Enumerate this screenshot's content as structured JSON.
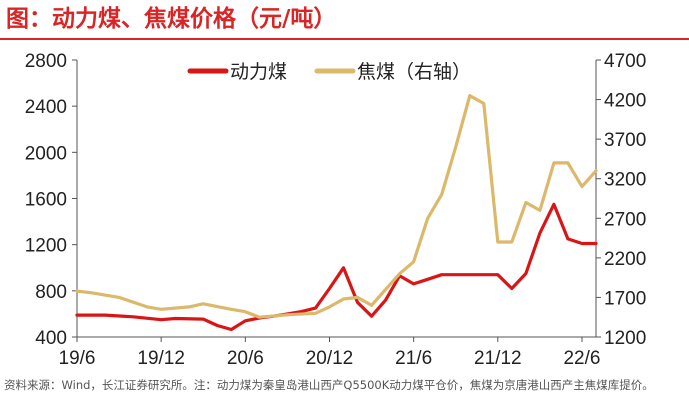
{
  "header": {
    "title": "图：动力煤、焦煤价格（元/吨）"
  },
  "footnote": "资料来源：Wind，长江证券研究所。注：动力煤为秦皇岛港山西产Q5500K动力煤平仓价，焦煤为京唐港山西产主焦煤库提价。",
  "chart_data": {
    "type": "line",
    "x_start": "2019-06",
    "x_end": "2022-07",
    "x_ticks": [
      "19/6",
      "19/12",
      "20/6",
      "20/12",
      "21/6",
      "21/12",
      "22/6"
    ],
    "y_left": {
      "ticks": [
        "2800",
        "2400",
        "2000",
        "1600",
        "1200",
        "800",
        "400"
      ],
      "ylim": [
        400,
        2800
      ]
    },
    "y_right": {
      "ticks": [
        "4700",
        "4200",
        "3700",
        "3200",
        "2700",
        "2200",
        "1700",
        "1200"
      ],
      "ylim": [
        1200,
        4700
      ]
    },
    "legend": [
      "动力煤",
      "焦煤（右轴）"
    ],
    "colors": {
      "thermal": "#d91515",
      "coking": "#dbb86a"
    },
    "series": [
      {
        "name": "动力煤",
        "axis": "left",
        "points": [
          [
            "2019-06",
            590
          ],
          [
            "2019-08",
            590
          ],
          [
            "2019-10",
            575
          ],
          [
            "2019-12",
            550
          ],
          [
            "2020-01",
            560
          ],
          [
            "2020-03",
            555
          ],
          [
            "2020-04",
            500
          ],
          [
            "2020-05",
            465
          ],
          [
            "2020-06",
            540
          ],
          [
            "2020-07",
            565
          ],
          [
            "2020-08",
            580
          ],
          [
            "2020-09",
            600
          ],
          [
            "2020-10",
            620
          ],
          [
            "2020-11",
            650
          ],
          [
            "2020-12",
            820
          ],
          [
            "2021-01",
            1000
          ],
          [
            "2021-02",
            700
          ],
          [
            "2021-03",
            580
          ],
          [
            "2021-04",
            720
          ],
          [
            "2021-05",
            930
          ],
          [
            "2021-06",
            860
          ],
          [
            "2021-07",
            900
          ],
          [
            "2021-08",
            940
          ],
          [
            "2021-11",
            940
          ],
          [
            "2021-12",
            940
          ],
          [
            "2022-01",
            820
          ],
          [
            "2022-02",
            950
          ],
          [
            "2022-03",
            1300
          ],
          [
            "2022-04",
            1550
          ],
          [
            "2022-05",
            1250
          ],
          [
            "2022-06",
            1210
          ],
          [
            "2022-07",
            1210
          ]
        ]
      },
      {
        "name": "焦煤（右轴）",
        "axis": "right",
        "points": [
          [
            "2019-06",
            1780
          ],
          [
            "2019-07",
            1760
          ],
          [
            "2019-09",
            1700
          ],
          [
            "2019-11",
            1580
          ],
          [
            "2019-12",
            1550
          ],
          [
            "2020-02",
            1580
          ],
          [
            "2020-03",
            1620
          ],
          [
            "2020-05",
            1550
          ],
          [
            "2020-06",
            1520
          ],
          [
            "2020-07",
            1450
          ],
          [
            "2020-09",
            1480
          ],
          [
            "2020-11",
            1500
          ],
          [
            "2020-12",
            1580
          ],
          [
            "2021-01",
            1680
          ],
          [
            "2021-02",
            1700
          ],
          [
            "2021-03",
            1600
          ],
          [
            "2021-04",
            1800
          ],
          [
            "2021-05",
            2000
          ],
          [
            "2021-06",
            2150
          ],
          [
            "2021-07",
            2700
          ],
          [
            "2021-08",
            3000
          ],
          [
            "2021-09",
            3600
          ],
          [
            "2021-10",
            4250
          ],
          [
            "2021-11",
            4150
          ],
          [
            "2021-12",
            2400
          ],
          [
            "2022-01",
            2400
          ],
          [
            "2022-02",
            2900
          ],
          [
            "2022-03",
            2800
          ],
          [
            "2022-04",
            3400
          ],
          [
            "2022-05",
            3400
          ],
          [
            "2022-06",
            3100
          ],
          [
            "2022-07",
            3300
          ]
        ]
      }
    ]
  }
}
